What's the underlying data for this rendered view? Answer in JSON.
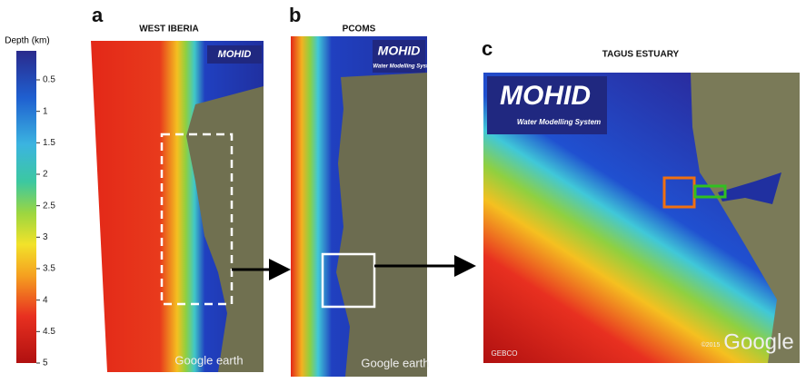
{
  "colorbar": {
    "title": "Depth (km)",
    "ticks": [
      0.5,
      1,
      1.5,
      2,
      2.5,
      3,
      3.5,
      4,
      4.5,
      5
    ]
  },
  "panels": [
    {
      "letter": "a",
      "title": "WEST IBERIA",
      "logo": "MOHID",
      "credit": "Google earth"
    },
    {
      "letter": "b",
      "title": "PCOMS",
      "logo": "MOHID",
      "subtitle": "Water Modelling System",
      "credit": "Google earth"
    },
    {
      "letter": "c",
      "title": "TAGUS ESTUARY",
      "logo": "MOHID",
      "subtitle": "Water Modelling System",
      "credit": "Google",
      "source": "GEBCO",
      "copyright": "©2015"
    }
  ]
}
